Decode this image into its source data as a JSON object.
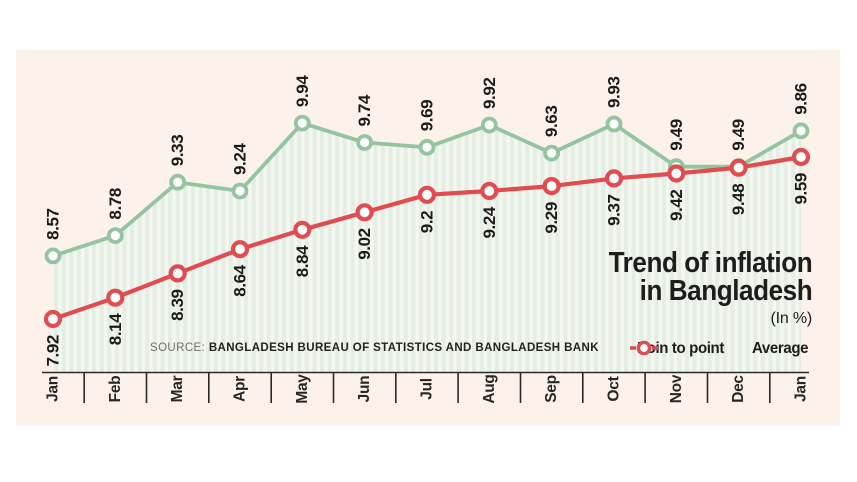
{
  "title": {
    "line1": "Trend of inflation",
    "line2": "in Bangladesh",
    "subtitle": "(In %)"
  },
  "source": {
    "prefix": "SOURCE:",
    "text": "BANGLADESH BUREAU OF STATISTICS AND BANGLADESH BANK"
  },
  "legend": [
    {
      "label": "Poin to point",
      "color": "#94c4a0"
    },
    {
      "label": "Average",
      "color": "#e04c50"
    }
  ],
  "colors": {
    "panel_background": "#fcf2e9",
    "page_background": "#ffffff",
    "stripe_dark": "#e5eee4",
    "stripe_light": "#f4f7ef",
    "axis": "#2a2a28",
    "text": "#1d1d1b"
  },
  "chart_data": {
    "type": "line",
    "categories": [
      "Jan",
      "Feb",
      "Mar",
      "Apr",
      "May",
      "Jun",
      "Jul",
      "Aug",
      "Sep",
      "Oct",
      "Nov",
      "Dec",
      "Jan"
    ],
    "series": [
      {
        "name": "Poin to point",
        "color": "#94c4a0",
        "style": "line-with-circle-markers, striped area fill below",
        "values": [
          8.57,
          8.78,
          9.33,
          9.24,
          9.94,
          9.74,
          9.69,
          9.92,
          9.63,
          9.93,
          9.49,
          9.49,
          9.86
        ]
      },
      {
        "name": "Average",
        "color": "#e04c50",
        "style": "line-with-circle-markers",
        "values": [
          7.92,
          8.14,
          8.39,
          8.64,
          8.84,
          9.02,
          9.2,
          9.24,
          9.29,
          9.37,
          9.42,
          9.48,
          9.59
        ]
      }
    ],
    "title": "Trend of inflation in Bangladesh",
    "subtitle": "(In %)",
    "xlabel": "",
    "ylabel": "",
    "ylim": [
      7.6,
      10.2
    ],
    "grid": false,
    "legend_position": "bottom-right",
    "value_labels": "rotated 90deg, above green points and below red points",
    "x_tick_labels_rotation": "vertical"
  }
}
